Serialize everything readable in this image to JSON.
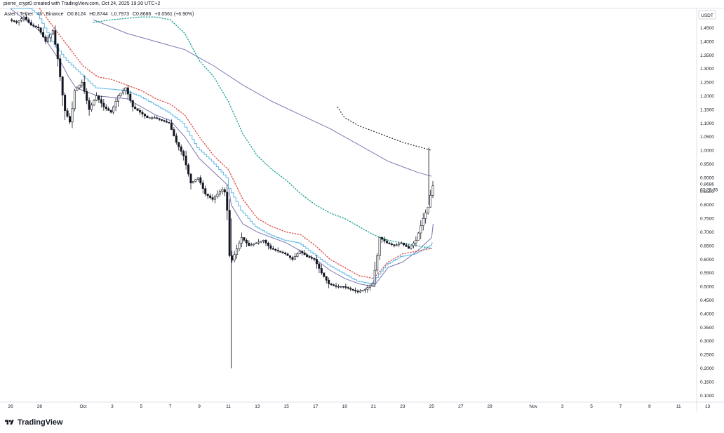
{
  "header": {
    "credit": "pierre_crypt0 created with TradingView.com, Oct 24, 2025 19:30 UTC+2"
  },
  "symbol": {
    "pair": "Aster / Tether",
    "timeframe": "4h",
    "exchange": "Binance",
    "ohlc": {
      "open": "O0.8124",
      "high": "H0.8744",
      "low": "L0.7973",
      "close": "C0.8686",
      "change": "+0.0561 (+6.90%)"
    }
  },
  "price_axis": {
    "currency": "USDT",
    "current_price": "0.8686",
    "countdown": "02:29:35"
  },
  "brand": {
    "name": "TradingView"
  },
  "chart_data": {
    "type": "candlestick",
    "x_unit": "days from 26 Sep 2025",
    "ylim": [
      0.07,
      1.52
    ],
    "y_ticks": [
      0.1,
      0.15,
      0.2,
      0.25,
      0.3,
      0.35,
      0.4,
      0.45,
      0.5,
      0.55,
      0.6,
      0.65,
      0.7,
      0.75,
      0.8,
      0.85,
      0.9,
      0.95,
      1.0,
      1.05,
      1.1,
      1.15,
      1.2,
      1.25,
      1.3,
      1.35,
      1.4,
      1.45
    ],
    "x_ticks": [
      {
        "label": "26",
        "day": 0
      },
      {
        "label": "28",
        "day": 2
      },
      {
        "label": "Oct",
        "day": 5
      },
      {
        "label": "3",
        "day": 7
      },
      {
        "label": "5",
        "day": 9
      },
      {
        "label": "7",
        "day": 11
      },
      {
        "label": "9",
        "day": 13
      },
      {
        "label": "11",
        "day": 15
      },
      {
        "label": "13",
        "day": 17
      },
      {
        "label": "15",
        "day": 19
      },
      {
        "label": "17",
        "day": 21
      },
      {
        "label": "19",
        "day": 23
      },
      {
        "label": "21",
        "day": 25
      },
      {
        "label": "23",
        "day": 27
      },
      {
        "label": "25",
        "day": 29
      },
      {
        "label": "27",
        "day": 31
      },
      {
        "label": "29",
        "day": 33
      },
      {
        "label": "Nov",
        "day": 36
      },
      {
        "label": "3",
        "day": 38
      },
      {
        "label": "5",
        "day": 40
      },
      {
        "label": "7",
        "day": 42
      },
      {
        "label": "9",
        "day": 44
      },
      {
        "label": "11",
        "day": 46
      },
      {
        "label": "13",
        "day": 48
      }
    ],
    "close_anchors": [
      [
        0.0,
        1.48
      ],
      [
        0.5,
        1.47
      ],
      [
        1.0,
        1.49
      ],
      [
        1.5,
        1.46
      ],
      [
        2.0,
        1.45
      ],
      [
        2.5,
        1.4
      ],
      [
        3.0,
        1.44
      ],
      [
        3.3,
        1.35
      ],
      [
        3.8,
        1.15
      ],
      [
        4.2,
        1.1
      ],
      [
        4.5,
        1.22
      ],
      [
        5.0,
        1.25
      ],
      [
        5.5,
        1.15
      ],
      [
        6.0,
        1.2
      ],
      [
        6.5,
        1.16
      ],
      [
        7.0,
        1.14
      ],
      [
        7.5,
        1.2
      ],
      [
        8.0,
        1.23
      ],
      [
        8.5,
        1.16
      ],
      [
        9.0,
        1.14
      ],
      [
        9.5,
        1.12
      ],
      [
        10.0,
        1.12
      ],
      [
        10.5,
        1.11
      ],
      [
        11.0,
        1.1
      ],
      [
        11.5,
        1.03
      ],
      [
        12.0,
        0.98
      ],
      [
        12.5,
        0.88
      ],
      [
        13.0,
        0.9
      ],
      [
        13.5,
        0.84
      ],
      [
        14.0,
        0.82
      ],
      [
        14.5,
        0.85
      ],
      [
        14.8,
        0.86
      ],
      [
        15.0,
        0.78
      ],
      [
        15.2,
        0.58
      ],
      [
        15.6,
        0.63
      ],
      [
        16.0,
        0.68
      ],
      [
        16.5,
        0.65
      ],
      [
        17.0,
        0.66
      ],
      [
        17.5,
        0.67
      ],
      [
        18.0,
        0.64
      ],
      [
        18.5,
        0.63
      ],
      [
        19.0,
        0.62
      ],
      [
        19.5,
        0.6
      ],
      [
        20.0,
        0.63
      ],
      [
        20.5,
        0.61
      ],
      [
        21.0,
        0.6
      ],
      [
        21.5,
        0.55
      ],
      [
        22.0,
        0.51
      ],
      [
        22.5,
        0.5
      ],
      [
        23.0,
        0.5
      ],
      [
        23.5,
        0.49
      ],
      [
        24.0,
        0.48
      ],
      [
        24.5,
        0.49
      ],
      [
        25.0,
        0.51
      ],
      [
        25.3,
        0.6
      ],
      [
        25.5,
        0.68
      ],
      [
        26.0,
        0.66
      ],
      [
        26.5,
        0.65
      ],
      [
        27.0,
        0.66
      ],
      [
        27.5,
        0.64
      ],
      [
        28.0,
        0.67
      ],
      [
        28.5,
        0.75
      ],
      [
        28.9,
        0.8
      ],
      [
        29.1,
        0.87
      ]
    ],
    "wicks": [
      {
        "day": 15.2,
        "low": 0.2,
        "high": 0.75
      },
      {
        "day": 28.8,
        "low": 0.8,
        "high": 1.01
      }
    ],
    "series": [
      {
        "name": "",
        "color": "#7b75b0",
        "style": "solid",
        "x": [
          0,
          2,
          3.5,
          4,
          4.5,
          6,
          8,
          9,
          10,
          11,
          12,
          13,
          14,
          15,
          15.2,
          16,
          17,
          18,
          19,
          20,
          21,
          22,
          23,
          24,
          25,
          26,
          27,
          28,
          29,
          29.1
        ],
        "y": [
          1.52,
          1.44,
          1.32,
          1.27,
          1.23,
          1.2,
          1.19,
          1.16,
          1.13,
          1.11,
          1.05,
          0.97,
          0.92,
          0.87,
          0.8,
          0.73,
          0.7,
          0.68,
          0.66,
          0.63,
          0.6,
          0.56,
          0.53,
          0.51,
          0.5,
          0.57,
          0.59,
          0.63,
          0.68,
          0.73
        ]
      },
      {
        "name": "",
        "color": "#61b8e6",
        "style": "stepped",
        "x": [
          0,
          2,
          3,
          4,
          5,
          6,
          8,
          9,
          10,
          11,
          12,
          13,
          14,
          15,
          15.2,
          16,
          17,
          18,
          19,
          20,
          21,
          22,
          23,
          24,
          25,
          26,
          27,
          28,
          29,
          29.1
        ],
        "y": [
          1.58,
          1.5,
          1.4,
          1.33,
          1.28,
          1.23,
          1.22,
          1.2,
          1.17,
          1.14,
          1.1,
          1.01,
          0.96,
          0.9,
          0.86,
          0.78,
          0.72,
          0.69,
          0.67,
          0.66,
          0.62,
          0.58,
          0.55,
          0.52,
          0.51,
          0.58,
          0.61,
          0.62,
          0.65,
          0.66
        ]
      },
      {
        "name": "",
        "color": "#e05552",
        "style": "dotted",
        "x": [
          2,
          3,
          4,
          5,
          6,
          7,
          8,
          9,
          10,
          11,
          12,
          13,
          14,
          15,
          16,
          17,
          18,
          19,
          20,
          21,
          22,
          23,
          24,
          25,
          26,
          27,
          28,
          29
        ],
        "y": [
          1.55,
          1.45,
          1.38,
          1.31,
          1.27,
          1.26,
          1.24,
          1.22,
          1.19,
          1.17,
          1.13,
          1.05,
          0.98,
          0.93,
          0.82,
          0.75,
          0.72,
          0.7,
          0.69,
          0.65,
          0.6,
          0.57,
          0.54,
          0.53,
          0.59,
          0.62,
          0.63,
          0.64
        ]
      },
      {
        "name": "",
        "color": "#7c78b5",
        "style": "solid",
        "x": [
          5.7,
          8,
          10,
          12,
          13,
          14,
          16,
          18,
          20,
          22,
          24,
          25,
          26,
          27,
          28,
          29
        ],
        "y": [
          1.48,
          1.43,
          1.4,
          1.37,
          1.34,
          1.31,
          1.24,
          1.18,
          1.13,
          1.08,
          1.02,
          0.99,
          0.96,
          0.94,
          0.92,
          0.905
        ]
      },
      {
        "name": "",
        "color": "#26a69a",
        "style": "dotted",
        "x": [
          5.7,
          7,
          8,
          9,
          10,
          11,
          12,
          13,
          14,
          15,
          16,
          17,
          18,
          19,
          20,
          21,
          22,
          23,
          24,
          25,
          26,
          27,
          28,
          29
        ],
        "y": [
          1.47,
          1.48,
          1.485,
          1.49,
          1.49,
          1.48,
          1.43,
          1.33,
          1.27,
          1.18,
          1.06,
          0.98,
          0.93,
          0.89,
          0.84,
          0.8,
          0.77,
          0.75,
          0.72,
          0.69,
          0.67,
          0.66,
          0.65,
          0.64
        ]
      },
      {
        "name": "",
        "color": "#333333",
        "style": "dashed",
        "x": [
          22.5,
          23,
          24,
          25,
          26,
          27,
          28,
          29
        ],
        "y": [
          1.16,
          1.12,
          1.09,
          1.07,
          1.05,
          1.03,
          1.015,
          1.0
        ]
      }
    ]
  }
}
